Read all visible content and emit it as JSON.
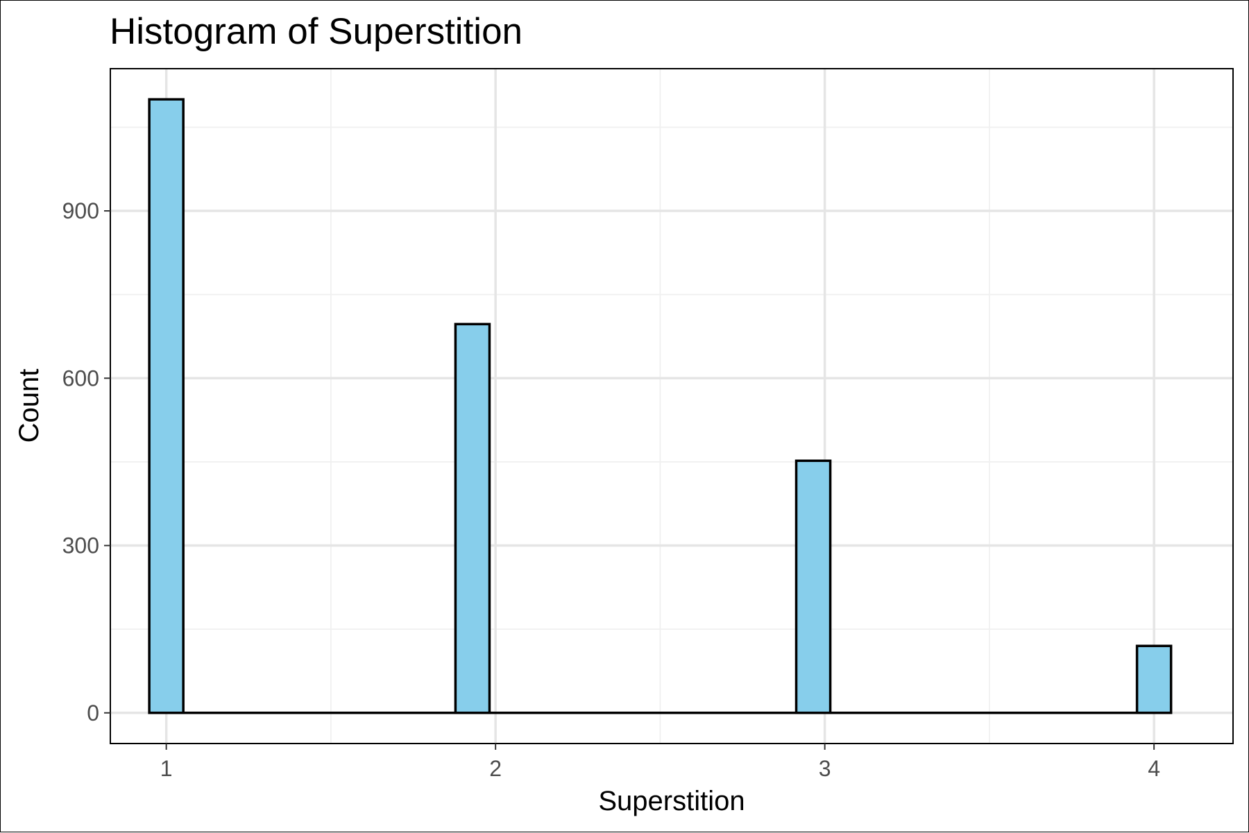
{
  "chart_data": {
    "type": "bar",
    "title": "Histogram of Superstition",
    "xlabel": "Superstition",
    "ylabel": "Count",
    "x_ticks": [
      1,
      2,
      3,
      4
    ],
    "y_ticks": [
      0,
      300,
      600,
      900
    ],
    "xlim": [
      0.83,
      4.24
    ],
    "ylim": [
      -55,
      1155
    ],
    "grid": true,
    "bin_width": 0.1034,
    "bins": [
      {
        "x": 1.0,
        "value": 1100
      },
      {
        "x": 1.93,
        "value": 697
      },
      {
        "x": 2.965,
        "value": 452
      },
      {
        "x": 4.0,
        "value": 120
      }
    ],
    "baseline_range": [
      0.948,
      4.052
    ],
    "colors": {
      "bar_fill": "#87ceeb",
      "bar_outline": "#000000"
    }
  }
}
